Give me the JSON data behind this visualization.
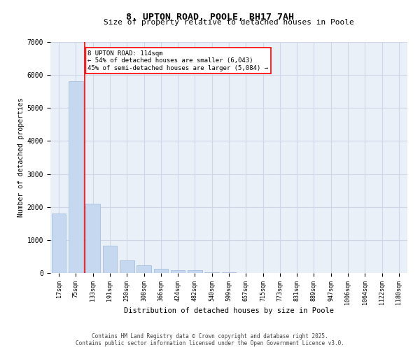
{
  "title": "8, UPTON ROAD, POOLE, BH17 7AH",
  "subtitle": "Size of property relative to detached houses in Poole",
  "xlabel": "Distribution of detached houses by size in Poole",
  "ylabel": "Number of detached properties",
  "bar_color": "#c5d8f0",
  "bar_edge_color": "#a0b8d8",
  "grid_color": "#d0d8e8",
  "background_color": "#eaf0f8",
  "categories": [
    "17sqm",
    "75sqm",
    "133sqm",
    "191sqm",
    "250sqm",
    "308sqm",
    "366sqm",
    "424sqm",
    "482sqm",
    "540sqm",
    "599sqm",
    "657sqm",
    "715sqm",
    "773sqm",
    "831sqm",
    "889sqm",
    "947sqm",
    "1006sqm",
    "1064sqm",
    "1122sqm",
    "1180sqm"
  ],
  "values": [
    1800,
    5820,
    2090,
    830,
    380,
    240,
    130,
    80,
    90,
    30,
    15,
    5,
    2,
    1,
    1,
    0,
    0,
    0,
    0,
    0,
    0
  ],
  "ylim": [
    0,
    7000
  ],
  "yticks": [
    0,
    1000,
    2000,
    3000,
    4000,
    5000,
    6000,
    7000
  ],
  "property_line_label": "8 UPTON ROAD: 114sqm",
  "annotation_line1": "← 54% of detached houses are smaller (6,043)",
  "annotation_line2": "45% of semi-detached houses are larger (5,084) →",
  "annotation_box_color": "white",
  "annotation_box_edge": "red",
  "vline_color": "red",
  "footer_line1": "Contains HM Land Registry data © Crown copyright and database right 2025.",
  "footer_line2": "Contains public sector information licensed under the Open Government Licence v3.0."
}
